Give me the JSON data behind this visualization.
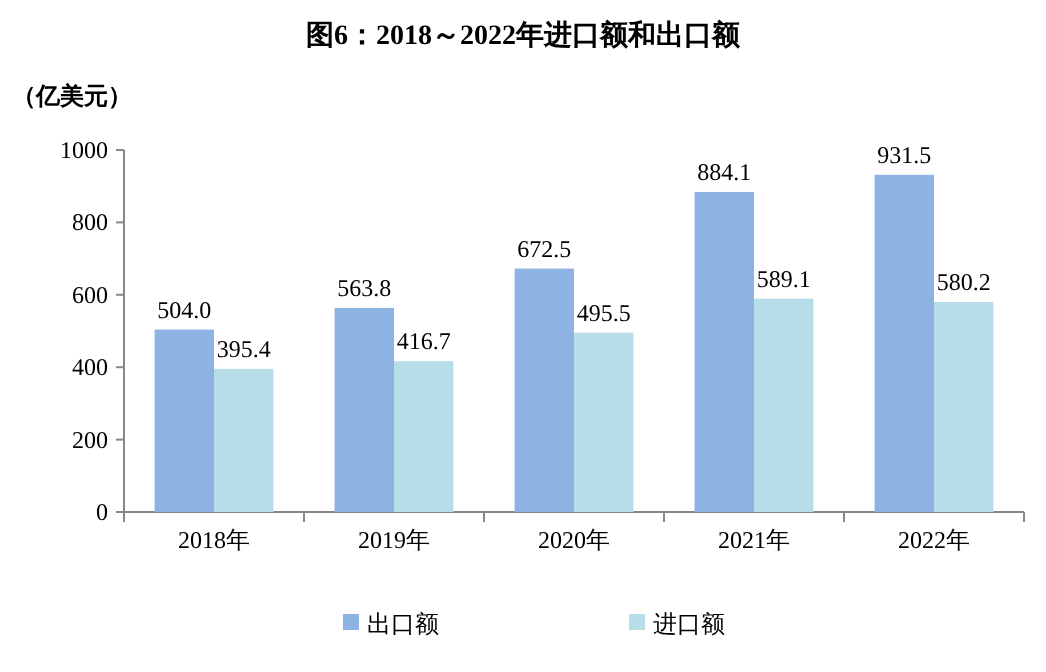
{
  "chart_data": {
    "type": "bar",
    "title": "图6：2018～2022年进口额和出口额",
    "ylabel": "（亿美元）",
    "categories": [
      "2018年",
      "2019年",
      "2020年",
      "2021年",
      "2022年"
    ],
    "series": [
      {
        "name": "出口额",
        "color": "#8db3e2",
        "values": [
          504.0,
          563.8,
          672.5,
          884.1,
          931.5
        ],
        "value_labels": [
          "504.0",
          "563.8",
          "672.5",
          "884.1",
          "931.5"
        ]
      },
      {
        "name": "进口额",
        "color": "#b7dee8",
        "values": [
          395.4,
          416.7,
          495.5,
          589.1,
          580.2
        ],
        "value_labels": [
          "395.4",
          "416.7",
          "495.5",
          "589.1",
          "580.2"
        ]
      }
    ],
    "ylim": [
      0,
      1000
    ],
    "yticks": [
      0,
      200,
      400,
      600,
      800,
      1000
    ],
    "grid": false,
    "legend": "bottom"
  }
}
